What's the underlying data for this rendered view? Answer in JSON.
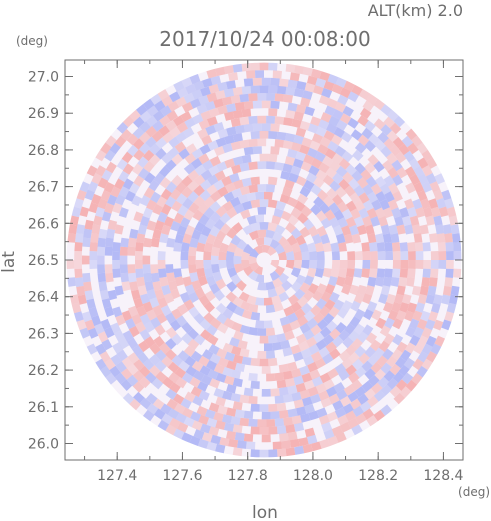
{
  "chart_data": {
    "type": "heatmap",
    "title": "2017/10/24 00:08:00",
    "subtitle": "ALT(km) 2.0",
    "xlabel": "lon",
    "ylabel": "lat",
    "xunit": "(deg)",
    "yunit": "(deg)",
    "xlim": [
      127.24,
      128.46
    ],
    "ylim": [
      25.955,
      27.045
    ],
    "xticks": [
      127.4,
      127.6,
      127.8,
      128.0,
      128.2,
      128.4
    ],
    "xtick_labels": [
      "127.4",
      "127.6",
      "127.8",
      "128.0",
      "128.2",
      "128.4"
    ],
    "yticks": [
      26.0,
      26.1,
      26.2,
      26.3,
      26.4,
      26.5,
      26.6,
      26.7,
      26.8,
      26.9,
      27.0
    ],
    "ytick_labels": [
      "26.0",
      "26.1",
      "26.2",
      "26.3",
      "26.4",
      "26.5",
      "26.6",
      "26.7",
      "26.8",
      "26.9",
      "27.0"
    ],
    "radar_center": {
      "lon": 127.85,
      "lat": 26.5
    },
    "radar_range_deg": {
      "lon": 0.605,
      "lat": 0.54
    },
    "colors": {
      "positive": "#f4a8a8",
      "negative": "#a8b0f4",
      "axis": "#6e6e6e"
    },
    "grid": false
  }
}
